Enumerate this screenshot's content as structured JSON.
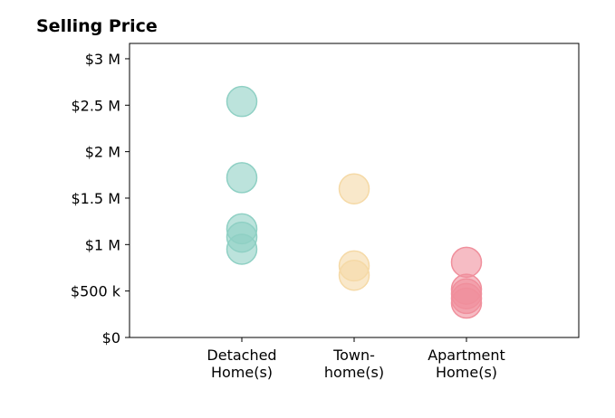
{
  "chart_data": {
    "type": "scatter",
    "title": "Selling Price",
    "categories": [
      [
        "Detached",
        "Home(s)"
      ],
      [
        "Town-",
        "home(s)"
      ],
      [
        "Apartment",
        "Home(s)"
      ]
    ],
    "colors": [
      "#8fd0c4",
      "#f5d9a6",
      "#f08f9c"
    ],
    "values": [
      [
        2540000,
        1720000,
        1170000,
        1080000,
        950000
      ],
      [
        1600000,
        770000,
        670000
      ],
      [
        810000,
        520000,
        470000,
        420000,
        370000
      ]
    ],
    "ylim": [
      0,
      3165000
    ],
    "yticks": [
      {
        "value": 0,
        "label": "$0"
      },
      {
        "value": 500000,
        "label": "$500 k"
      },
      {
        "value": 1000000,
        "label": "$1 M"
      },
      {
        "value": 1500000,
        "label": "$1.5 M"
      },
      {
        "value": 2000000,
        "label": "$2 M"
      },
      {
        "value": 2500000,
        "label": "$2.5 M"
      },
      {
        "value": 3000000,
        "label": "$3 M"
      }
    ]
  }
}
